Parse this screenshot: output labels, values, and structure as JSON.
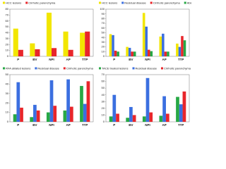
{
  "chart_data": [
    {
      "type": "bar",
      "categories": [
        "P",
        "BV",
        "NPI",
        "AP",
        "TTP"
      ],
      "series": [
        {
          "name": "HCC lesions",
          "color": "#f2e600",
          "values": [
            47,
            22,
            74,
            42,
            40
          ]
        },
        {
          "name": "Cirrhotic parenchyma",
          "color": "#e8262b",
          "values": [
            11,
            12,
            14,
            11,
            42
          ]
        }
      ],
      "ylim": [
        0,
        80
      ],
      "yticks": [
        0,
        10,
        20,
        30,
        40,
        50,
        60,
        70,
        80
      ]
    },
    {
      "type": "bar",
      "categories": [
        "P",
        "BV",
        "NPI",
        "AP",
        "TTP"
      ],
      "series": [
        {
          "name": "HCC lesions",
          "color": "#f2e600",
          "values": [
            47,
            20,
            92,
            42,
            27
          ]
        },
        {
          "name": "Residual disease",
          "color": "#3b6fe0",
          "values": [
            45,
            18,
            63,
            48,
            20
          ]
        },
        {
          "name": "Cirrhotic parenchyma",
          "color": "#e8262b",
          "values": [
            12,
            10,
            14,
            10,
            43
          ]
        },
        {
          "name": "Ablated lesions",
          "color": "#27a845",
          "values": [
            10,
            10,
            11,
            10,
            34
          ]
        }
      ],
      "ylim": [
        0,
        100
      ],
      "yticks": [
        0,
        10,
        20,
        30,
        40,
        50,
        60,
        70,
        80,
        90,
        100
      ]
    },
    {
      "type": "bar",
      "categories": [
        "P",
        "BV",
        "NPI",
        "AP",
        "TTP"
      ],
      "series": [
        {
          "name": "RFA ablated lesions",
          "color": "#27a845",
          "values": [
            8,
            5,
            10,
            12,
            38
          ]
        },
        {
          "name": "Residual disease",
          "color": "#3b6fe0",
          "values": [
            42,
            18,
            44,
            45,
            19
          ]
        },
        {
          "name": "Cirrhotic parenchyma",
          "color": "#e8262b",
          "values": [
            15,
            12,
            17,
            16,
            43
          ]
        }
      ],
      "ylim": [
        0,
        50
      ],
      "yticks": [
        0,
        10,
        20,
        30,
        40,
        50
      ]
    },
    {
      "type": "bar",
      "categories": [
        "P",
        "BV",
        "NPI",
        "AP",
        "TTP"
      ],
      "series": [
        {
          "name": "TACE treated lesions",
          "color": "#27a845",
          "values": [
            8,
            6,
            8,
            9,
            37
          ]
        },
        {
          "name": "Residual disease",
          "color": "#3b6fe0",
          "values": [
            40,
            22,
            65,
            38,
            26
          ]
        },
        {
          "name": "Cirrhotic parenchyma",
          "color": "#e8262b",
          "values": [
            12,
            10,
            14,
            12,
            45
          ]
        }
      ],
      "ylim": [
        0,
        70
      ],
      "yticks": [
        0,
        10,
        20,
        30,
        40,
        50,
        60,
        70
      ]
    }
  ]
}
